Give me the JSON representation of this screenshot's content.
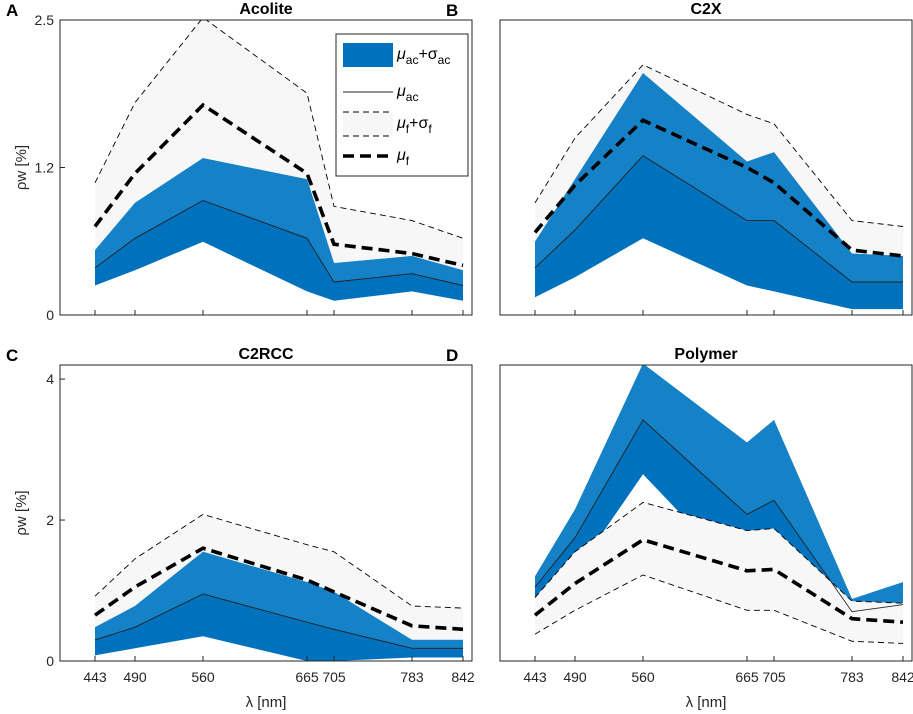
{
  "chart_data": [
    {
      "type": "area",
      "letter": "A",
      "title": "Acolite",
      "xlabel": "",
      "ylabel": "ρw [%]",
      "ylim": [
        0,
        2.5
      ],
      "yticks": [
        "0",
        "1.2",
        "2.5"
      ],
      "ytick_values": [
        0,
        1.25,
        2.5
      ],
      "xticks": [],
      "x": [
        443,
        490,
        560,
        665,
        705,
        783,
        842
      ],
      "series": [
        {
          "name": "μac+σac",
          "upper": [
            0.55,
            0.95,
            1.33,
            1.15,
            0.44,
            0.5,
            0.38
          ],
          "lower": [
            0.25,
            0.38,
            0.62,
            0.2,
            0.12,
            0.2,
            0.12
          ]
        },
        {
          "name": "μac",
          "values": [
            0.4,
            0.65,
            0.97,
            0.65,
            0.28,
            0.35,
            0.25
          ]
        },
        {
          "name": "μf+σf",
          "upper": [
            1.12,
            1.8,
            2.52,
            1.88,
            0.92,
            0.8,
            0.65
          ],
          "lower": [
            0.38,
            0.6,
            1.05,
            0.6,
            0.28,
            0.25,
            0.18
          ]
        },
        {
          "name": "μf",
          "values": [
            0.75,
            1.2,
            1.78,
            1.2,
            0.6,
            0.52,
            0.42
          ]
        }
      ],
      "legend": {
        "location": "top-right",
        "entries": [
          {
            "label_main": "μ",
            "label_sub": "ac",
            "label_plus": "+σ",
            "label_sub2": "ac"
          },
          {
            "label_main": "μ",
            "label_sub": "ac",
            "label_plus": "",
            "label_sub2": ""
          },
          {
            "label_main": "μ",
            "label_sub": "f",
            "label_plus": "+σ",
            "label_sub2": "f"
          },
          {
            "label_main": "μ",
            "label_sub": "f",
            "label_plus": "",
            "label_sub2": ""
          }
        ]
      }
    },
    {
      "type": "area",
      "letter": "B",
      "title": "C2X",
      "xlabel": "",
      "ylabel": "",
      "ylim": [
        0,
        2.5
      ],
      "yticks": [],
      "ytick_values": [],
      "xticks": [],
      "x": [
        443,
        490,
        560,
        665,
        705,
        783,
        842
      ],
      "series": [
        {
          "name": "μac+σac",
          "upper": [
            0.62,
            1.15,
            2.05,
            1.3,
            1.38,
            0.52,
            0.5
          ],
          "lower": [
            0.15,
            0.32,
            0.65,
            0.25,
            0.2,
            0.05,
            0.05
          ]
        },
        {
          "name": "μac",
          "values": [
            0.4,
            0.72,
            1.35,
            0.8,
            0.8,
            0.28,
            0.28
          ]
        },
        {
          "name": "μf+σf",
          "upper": [
            0.95,
            1.5,
            2.12,
            1.7,
            1.62,
            0.8,
            0.75
          ],
          "lower": [
            0.5,
            0.75,
            1.18,
            0.72,
            0.62,
            0.3,
            0.28
          ]
        },
        {
          "name": "μf",
          "values": [
            0.7,
            1.1,
            1.65,
            1.25,
            1.12,
            0.55,
            0.5
          ]
        }
      ]
    },
    {
      "type": "area",
      "letter": "C",
      "title": "C2RCC",
      "xlabel": "λ [nm]",
      "ylabel": "ρw [%]",
      "ylim": [
        0,
        4.2
      ],
      "yticks": [
        "0",
        "2",
        "4"
      ],
      "ytick_values": [
        0,
        2,
        4
      ],
      "xticks": [
        "443",
        "490",
        "560",
        "665",
        "705",
        "783",
        "842"
      ],
      "x": [
        443,
        490,
        560,
        665,
        705,
        783,
        842
      ],
      "series": [
        {
          "name": "μac+σac",
          "upper": [
            0.48,
            0.78,
            1.55,
            1.12,
            0.98,
            0.3,
            0.3
          ],
          "lower": [
            0.08,
            0.18,
            0.35,
            0.0,
            0.0,
            0.05,
            0.05
          ]
        },
        {
          "name": "μac",
          "values": [
            0.3,
            0.48,
            0.95,
            0.55,
            0.45,
            0.18,
            0.18
          ]
        },
        {
          "name": "μf+σf",
          "upper": [
            0.92,
            1.45,
            2.08,
            1.65,
            1.55,
            0.78,
            0.75
          ],
          "lower": [
            0.4,
            0.72,
            1.1,
            0.65,
            0.5,
            0.22,
            0.2
          ]
        },
        {
          "name": "μf",
          "values": [
            0.65,
            1.05,
            1.6,
            1.15,
            0.98,
            0.5,
            0.45
          ]
        }
      ]
    },
    {
      "type": "area",
      "letter": "D",
      "title": "Polymer",
      "xlabel": "λ [nm]",
      "ylabel": "",
      "ylim": [
        0,
        4.2
      ],
      "yticks": [],
      "ytick_values": [],
      "xticks": [
        "443",
        "490",
        "560",
        "665",
        "705",
        "783",
        "842"
      ],
      "x": [
        443,
        490,
        560,
        665,
        705,
        783,
        842
      ],
      "series": [
        {
          "name": "μac+σac",
          "upper": [
            1.2,
            2.15,
            4.22,
            3.1,
            3.42,
            0.88,
            1.12
          ],
          "lower": [
            0.85,
            1.25,
            2.65,
            1.1,
            1.15,
            0.3,
            0.5
          ]
        },
        {
          "name": "μac",
          "values": [
            1.05,
            1.75,
            3.42,
            2.08,
            2.28,
            0.7,
            0.8
          ]
        },
        {
          "name": "μf+σf",
          "upper": [
            0.9,
            1.55,
            2.25,
            1.85,
            1.88,
            0.85,
            0.82
          ],
          "lower": [
            0.38,
            0.72,
            1.22,
            0.72,
            0.72,
            0.28,
            0.25
          ]
        },
        {
          "name": "μf",
          "values": [
            0.65,
            1.1,
            1.72,
            1.28,
            1.3,
            0.6,
            0.55
          ]
        }
      ]
    }
  ],
  "colors": {
    "ac_fill": "#0072bd",
    "ac_fill_mid": "#1a85c8",
    "f_fill": "#f7f7f7",
    "axis": "#262626"
  }
}
